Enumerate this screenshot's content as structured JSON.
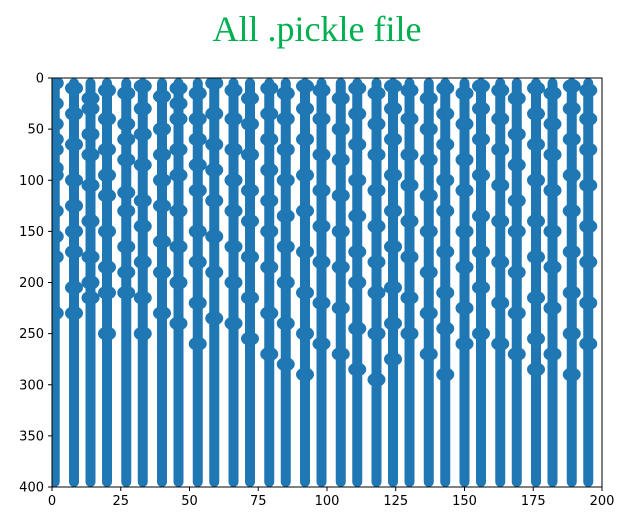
{
  "chart_data": {
    "type": "scatter",
    "title": "All .pickle file",
    "title_color": "#00b050",
    "marker_color": "#1f77b4",
    "xlim": [
      0,
      200
    ],
    "ylim": [
      400,
      0
    ],
    "y_axis_inverted": true,
    "grid": false,
    "xticks": [
      0,
      25,
      50,
      75,
      100,
      125,
      150,
      175,
      200
    ],
    "yticks": [
      0,
      50,
      100,
      150,
      200,
      250,
      300,
      350,
      400
    ],
    "columns_x": [
      1,
      8,
      14,
      20,
      27,
      33,
      40,
      46,
      53,
      59,
      66,
      72,
      79,
      85,
      92,
      98,
      105,
      111,
      118,
      124,
      130,
      137,
      143,
      150,
      156,
      163,
      169,
      176,
      182,
      189,
      195
    ],
    "points": [
      [
        1,
        5
      ],
      [
        1,
        25
      ],
      [
        1,
        45
      ],
      [
        1,
        60
      ],
      [
        1,
        70
      ],
      [
        1,
        88
      ],
      [
        1,
        95
      ],
      [
        1,
        130
      ],
      [
        1,
        155
      ],
      [
        1,
        175
      ],
      [
        1,
        230
      ],
      [
        8,
        10
      ],
      [
        8,
        35
      ],
      [
        8,
        65
      ],
      [
        8,
        100
      ],
      [
        8,
        125
      ],
      [
        8,
        150
      ],
      [
        8,
        170
      ],
      [
        8,
        205
      ],
      [
        8,
        230
      ],
      [
        14,
        20
      ],
      [
        14,
        30
      ],
      [
        14,
        55
      ],
      [
        14,
        75
      ],
      [
        14,
        105
      ],
      [
        14,
        140
      ],
      [
        14,
        175
      ],
      [
        14,
        200
      ],
      [
        14,
        215
      ],
      [
        20,
        12
      ],
      [
        20,
        40
      ],
      [
        20,
        70
      ],
      [
        20,
        95
      ],
      [
        20,
        115
      ],
      [
        20,
        150
      ],
      [
        20,
        185
      ],
      [
        20,
        210
      ],
      [
        20,
        250
      ],
      [
        27,
        15
      ],
      [
        27,
        45
      ],
      [
        27,
        60
      ],
      [
        27,
        80
      ],
      [
        27,
        112
      ],
      [
        27,
        130
      ],
      [
        27,
        165
      ],
      [
        27,
        190
      ],
      [
        27,
        210
      ],
      [
        33,
        8
      ],
      [
        33,
        30
      ],
      [
        33,
        55
      ],
      [
        33,
        85
      ],
      [
        33,
        120
      ],
      [
        33,
        145
      ],
      [
        33,
        180
      ],
      [
        33,
        215
      ],
      [
        33,
        250
      ],
      [
        40,
        18
      ],
      [
        40,
        50
      ],
      [
        40,
        75
      ],
      [
        40,
        100
      ],
      [
        40,
        125
      ],
      [
        40,
        160
      ],
      [
        40,
        190
      ],
      [
        40,
        230
      ],
      [
        46,
        10
      ],
      [
        46,
        25
      ],
      [
        46,
        40
      ],
      [
        46,
        70
      ],
      [
        46,
        95
      ],
      [
        46,
        130
      ],
      [
        46,
        165
      ],
      [
        46,
        200
      ],
      [
        46,
        240
      ],
      [
        53,
        15
      ],
      [
        53,
        40
      ],
      [
        53,
        60
      ],
      [
        53,
        85
      ],
      [
        53,
        110
      ],
      [
        53,
        150
      ],
      [
        53,
        180
      ],
      [
        53,
        220
      ],
      [
        53,
        260
      ],
      [
        59,
        5
      ],
      [
        59,
        35
      ],
      [
        59,
        65
      ],
      [
        59,
        90
      ],
      [
        59,
        120
      ],
      [
        59,
        155
      ],
      [
        59,
        190
      ],
      [
        59,
        235
      ],
      [
        66,
        12
      ],
      [
        66,
        40
      ],
      [
        66,
        70
      ],
      [
        66,
        100
      ],
      [
        66,
        130
      ],
      [
        66,
        165
      ],
      [
        66,
        200
      ],
      [
        66,
        240
      ],
      [
        72,
        20
      ],
      [
        72,
        45
      ],
      [
        72,
        75
      ],
      [
        72,
        110
      ],
      [
        72,
        140
      ],
      [
        72,
        175
      ],
      [
        72,
        215
      ],
      [
        72,
        255
      ],
      [
        79,
        10
      ],
      [
        79,
        35
      ],
      [
        79,
        60
      ],
      [
        79,
        90
      ],
      [
        79,
        120
      ],
      [
        79,
        150
      ],
      [
        79,
        185
      ],
      [
        79,
        230
      ],
      [
        79,
        270
      ],
      [
        85,
        15
      ],
      [
        85,
        40
      ],
      [
        85,
        70
      ],
      [
        85,
        100
      ],
      [
        85,
        135
      ],
      [
        85,
        165
      ],
      [
        85,
        200
      ],
      [
        85,
        240
      ],
      [
        85,
        280
      ],
      [
        92,
        8
      ],
      [
        92,
        30
      ],
      [
        92,
        60
      ],
      [
        92,
        95
      ],
      [
        92,
        130
      ],
      [
        92,
        170
      ],
      [
        92,
        210
      ],
      [
        92,
        250
      ],
      [
        92,
        290
      ],
      [
        98,
        12
      ],
      [
        98,
        40
      ],
      [
        98,
        75
      ],
      [
        98,
        110
      ],
      [
        98,
        145
      ],
      [
        98,
        180
      ],
      [
        98,
        220
      ],
      [
        98,
        260
      ],
      [
        105,
        20
      ],
      [
        105,
        50
      ],
      [
        105,
        80
      ],
      [
        105,
        115
      ],
      [
        105,
        150
      ],
      [
        105,
        185
      ],
      [
        105,
        225
      ],
      [
        105,
        270
      ],
      [
        111,
        10
      ],
      [
        111,
        35
      ],
      [
        111,
        65
      ],
      [
        111,
        100
      ],
      [
        111,
        135
      ],
      [
        111,
        170
      ],
      [
        111,
        200
      ],
      [
        111,
        245
      ],
      [
        111,
        285
      ],
      [
        118,
        15
      ],
      [
        118,
        45
      ],
      [
        118,
        75
      ],
      [
        118,
        110
      ],
      [
        118,
        145
      ],
      [
        118,
        180
      ],
      [
        118,
        210
      ],
      [
        118,
        250
      ],
      [
        118,
        295
      ],
      [
        124,
        8
      ],
      [
        124,
        30
      ],
      [
        124,
        60
      ],
      [
        124,
        95
      ],
      [
        124,
        130
      ],
      [
        124,
        165
      ],
      [
        124,
        205
      ],
      [
        124,
        240
      ],
      [
        124,
        275
      ],
      [
        130,
        12
      ],
      [
        130,
        40
      ],
      [
        130,
        75
      ],
      [
        130,
        105
      ],
      [
        130,
        140
      ],
      [
        130,
        175
      ],
      [
        130,
        215
      ],
      [
        130,
        250
      ],
      [
        137,
        20
      ],
      [
        137,
        50
      ],
      [
        137,
        80
      ],
      [
        137,
        115
      ],
      [
        137,
        150
      ],
      [
        137,
        190
      ],
      [
        137,
        230
      ],
      [
        137,
        270
      ],
      [
        143,
        10
      ],
      [
        143,
        35
      ],
      [
        143,
        65
      ],
      [
        143,
        100
      ],
      [
        143,
        130
      ],
      [
        143,
        170
      ],
      [
        143,
        210
      ],
      [
        143,
        245
      ],
      [
        143,
        290
      ],
      [
        150,
        15
      ],
      [
        150,
        45
      ],
      [
        150,
        80
      ],
      [
        150,
        110
      ],
      [
        150,
        150
      ],
      [
        150,
        185
      ],
      [
        150,
        225
      ],
      [
        150,
        260
      ],
      [
        156,
        8
      ],
      [
        156,
        30
      ],
      [
        156,
        60
      ],
      [
        156,
        95
      ],
      [
        156,
        135
      ],
      [
        156,
        170
      ],
      [
        156,
        205
      ],
      [
        156,
        250
      ],
      [
        163,
        12
      ],
      [
        163,
        40
      ],
      [
        163,
        70
      ],
      [
        163,
        105
      ],
      [
        163,
        140
      ],
      [
        163,
        180
      ],
      [
        163,
        220
      ],
      [
        163,
        260
      ],
      [
        169,
        20
      ],
      [
        169,
        55
      ],
      [
        169,
        85
      ],
      [
        169,
        120
      ],
      [
        169,
        150
      ],
      [
        169,
        190
      ],
      [
        169,
        230
      ],
      [
        169,
        270
      ],
      [
        176,
        10
      ],
      [
        176,
        35
      ],
      [
        176,
        65
      ],
      [
        176,
        100
      ],
      [
        176,
        140
      ],
      [
        176,
        175
      ],
      [
        176,
        215
      ],
      [
        176,
        255
      ],
      [
        176,
        285
      ],
      [
        182,
        15
      ],
      [
        182,
        45
      ],
      [
        182,
        75
      ],
      [
        182,
        110
      ],
      [
        182,
        150
      ],
      [
        182,
        185
      ],
      [
        182,
        225
      ],
      [
        182,
        270
      ],
      [
        189,
        8
      ],
      [
        189,
        30
      ],
      [
        189,
        60
      ],
      [
        189,
        95
      ],
      [
        189,
        130
      ],
      [
        189,
        170
      ],
      [
        189,
        210
      ],
      [
        189,
        250
      ],
      [
        189,
        290
      ],
      [
        195,
        12
      ],
      [
        195,
        40
      ],
      [
        195,
        70
      ],
      [
        195,
        105
      ],
      [
        195,
        145
      ],
      [
        195,
        180
      ],
      [
        195,
        220
      ],
      [
        195,
        260
      ]
    ]
  }
}
